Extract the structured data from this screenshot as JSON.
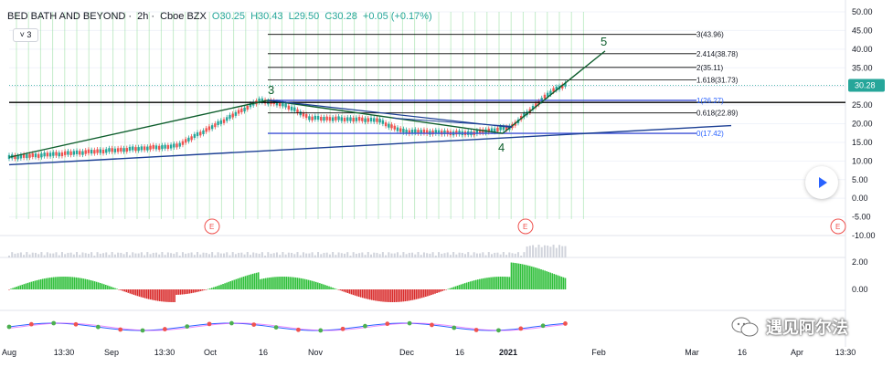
{
  "header": {
    "symbol": "BED BATH AND BEYOND",
    "interval": "2h",
    "exchange": "Cboe BZX",
    "open": "O30.25",
    "high": "H30.43",
    "low": "L29.50",
    "close": "C30.28",
    "change": "+0.05 (+0.17%)",
    "indicator_toggle": "3"
  },
  "watermark": {
    "text": "遇见阿尔法"
  },
  "colors": {
    "up": "#26a69a",
    "down": "#ef5350",
    "trend": "#0f5e2e",
    "blue": "#1c3f94",
    "last_price_tag": "#26a69a"
  },
  "chart_data": {
    "type": "candlestick",
    "last_price": 30.28,
    "last_price_label": "30.28",
    "y_axis": {
      "range": [
        -10,
        50
      ],
      "ticks": [
        "50.00",
        "45.00",
        "40.00",
        "35.00",
        "30.00",
        "25.00",
        "20.00",
        "15.00",
        "10.00",
        "5.00",
        "0.00",
        "-5.00",
        "-10.00"
      ]
    },
    "x_axis": {
      "ticks": [
        "Aug",
        "13:30",
        "Sep",
        "13:30",
        "Oct",
        "16",
        "Nov",
        "Dec",
        "16",
        "2021",
        "Feb",
        "Mar",
        "16",
        "Apr",
        "13:30"
      ]
    },
    "price_path": [
      [
        0,
        11
      ],
      [
        0.1,
        12.5
      ],
      [
        0.2,
        14
      ],
      [
        0.25,
        20
      ],
      [
        0.3,
        26.3
      ],
      [
        0.33,
        25
      ],
      [
        0.36,
        21.5
      ],
      [
        0.44,
        21
      ],
      [
        0.47,
        18
      ],
      [
        0.55,
        17.4
      ],
      [
        0.6,
        19
      ],
      [
        0.63,
        25
      ],
      [
        0.65,
        29
      ],
      [
        0.665,
        30.3
      ]
    ],
    "fib_levels": [
      {
        "label": "3(43.96)",
        "value": 43.96
      },
      {
        "label": "2.414(38.78)",
        "value": 38.78
      },
      {
        "label": "2(35.11)",
        "value": 35.11
      },
      {
        "label": "1.618(31.73)",
        "value": 31.73
      },
      {
        "label": "1(26.27)",
        "value": 26.27
      },
      {
        "label": "0.618(22.89)",
        "value": 22.89
      },
      {
        "label": "0(17.42)",
        "value": 17.42
      }
    ],
    "wave_labels": [
      "3",
      "4",
      "5"
    ],
    "earnings_marker": "E",
    "oscillator_ticks": [
      "2.00",
      "0.00"
    ],
    "grid": true
  }
}
